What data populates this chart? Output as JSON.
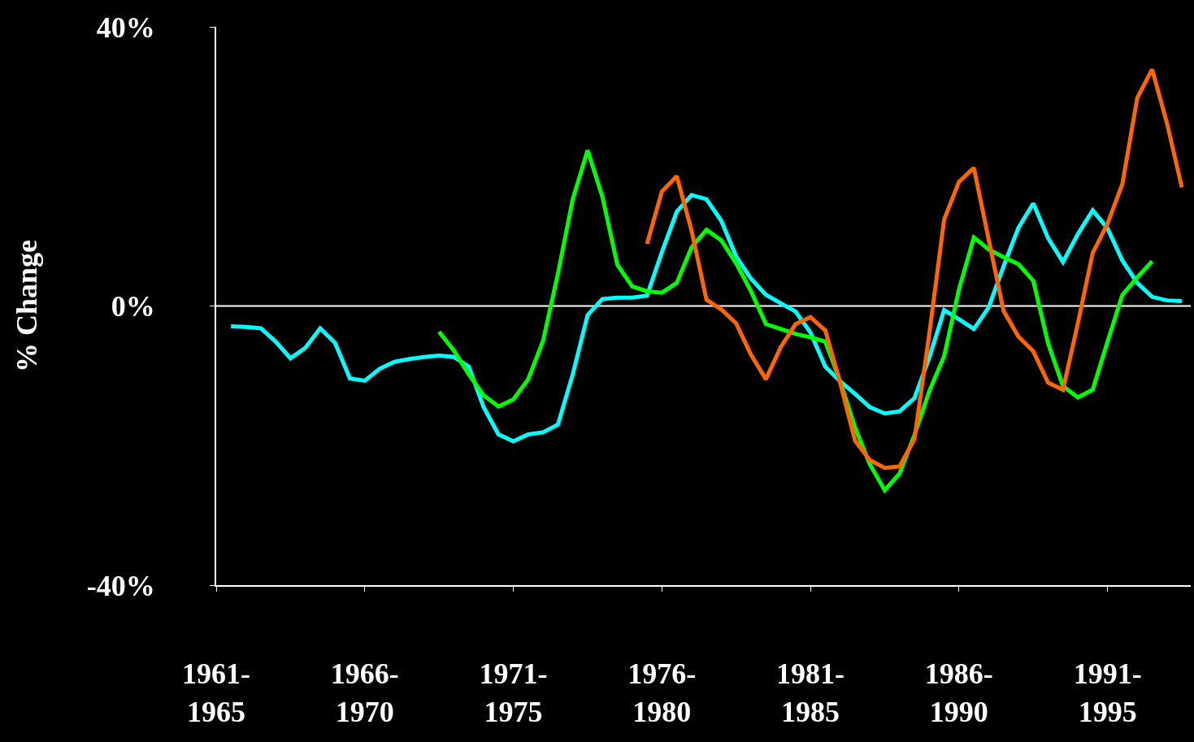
{
  "chart_data": {
    "type": "line",
    "ylabel": "% Change",
    "categories": [
      "1961-\n1965",
      null,
      null,
      null,
      null,
      null,
      null,
      null,
      null,
      null,
      "1966-\n1970",
      null,
      null,
      null,
      null,
      null,
      null,
      null,
      null,
      null,
      "1971-\n1975",
      null,
      null,
      null,
      null,
      null,
      null,
      null,
      null,
      null,
      "1976-\n1980",
      null,
      null,
      null,
      null,
      null,
      null,
      null,
      null,
      null,
      "1981-\n1985",
      null,
      null,
      null,
      null,
      null,
      null,
      null,
      null,
      null,
      "1986-\n1990",
      null,
      null,
      null,
      null,
      null,
      null,
      null,
      null,
      null,
      "1991-\n1995",
      null,
      null,
      null,
      null,
      null
    ],
    "ylim": [
      -40,
      40
    ],
    "yticks": [
      {
        "value": 40,
        "label": "40%"
      },
      {
        "value": 0,
        "label": "0%"
      },
      {
        "value": -40,
        "label": "-40%"
      }
    ],
    "grid": false,
    "line_style": "solid",
    "ref_lines": [
      {
        "axis": "y",
        "value": 0,
        "color": "#ffffff"
      }
    ],
    "series": [
      {
        "color": "#00ffff",
        "values": [
          null,
          -2.9,
          -3.0,
          -3.2,
          -5.1,
          -7.5,
          -6.0,
          -3.2,
          -5.3,
          -10.4,
          -10.7,
          -9.0,
          -8.0,
          -7.6,
          -7.3,
          -7.1,
          -7.3,
          -8.7,
          -14.5,
          -18.4,
          -19.4,
          -18.4,
          -18.1,
          -17.0,
          -9.8,
          -1.3,
          1.0,
          1.2,
          1.2,
          1.5,
          7.7,
          13.5,
          15.9,
          15.3,
          12.2,
          7.1,
          3.9,
          1.6,
          0.4,
          -0.8,
          -3.8,
          -8.7,
          -10.8,
          -12.6,
          -14.5,
          -15.4,
          -15.1,
          -13.2,
          -7.4,
          -0.6,
          -1.9,
          -3.3,
          -0.2,
          5.7,
          11.2,
          14.7,
          9.7,
          6.3,
          10.3,
          13.7,
          11.1,
          6.5,
          3.3,
          1.3,
          0.8,
          0.7
        ]
      },
      {
        "color": "#00ff00",
        "values": [
          null,
          null,
          null,
          null,
          null,
          null,
          null,
          null,
          null,
          null,
          null,
          null,
          null,
          null,
          null,
          -3.7,
          -6.4,
          -9.8,
          -12.8,
          -14.4,
          -13.4,
          -10.5,
          -5.0,
          4.6,
          15.3,
          22.3,
          15.6,
          5.9,
          2.8,
          2.1,
          1.9,
          3.3,
          8.4,
          10.9,
          9.4,
          6.1,
          2.1,
          -2.6,
          -3.3,
          -4.0,
          -4.5,
          -5.1,
          -10.8,
          -17.4,
          -22.7,
          -26.4,
          -24.0,
          -18.5,
          -12.2,
          -7.2,
          2.4,
          9.8,
          8.1,
          7.0,
          6.0,
          3.6,
          -5.4,
          -11.5,
          -13.1,
          -12.0,
          -5.1,
          1.6,
          4.1,
          6.4,
          null,
          null
        ]
      },
      {
        "color": "#ff6600",
        "values": [
          null,
          null,
          null,
          null,
          null,
          null,
          null,
          null,
          null,
          null,
          null,
          null,
          null,
          null,
          null,
          null,
          null,
          null,
          null,
          null,
          null,
          null,
          null,
          null,
          null,
          null,
          null,
          null,
          null,
          8.9,
          16.4,
          18.6,
          10.8,
          0.9,
          -0.5,
          -2.5,
          -7.0,
          -10.5,
          -5.9,
          -2.6,
          -1.6,
          -3.5,
          -11.0,
          -19.3,
          -22.1,
          -23.2,
          -23.0,
          -19.1,
          -4.0,
          12.4,
          17.8,
          19.8,
          9.5,
          -0.7,
          -4.4,
          -6.5,
          -11.0,
          -12.0,
          -2.5,
          7.6,
          11.8,
          17.5,
          29.8,
          33.9,
          26.2,
          17.0
        ]
      }
    ]
  }
}
